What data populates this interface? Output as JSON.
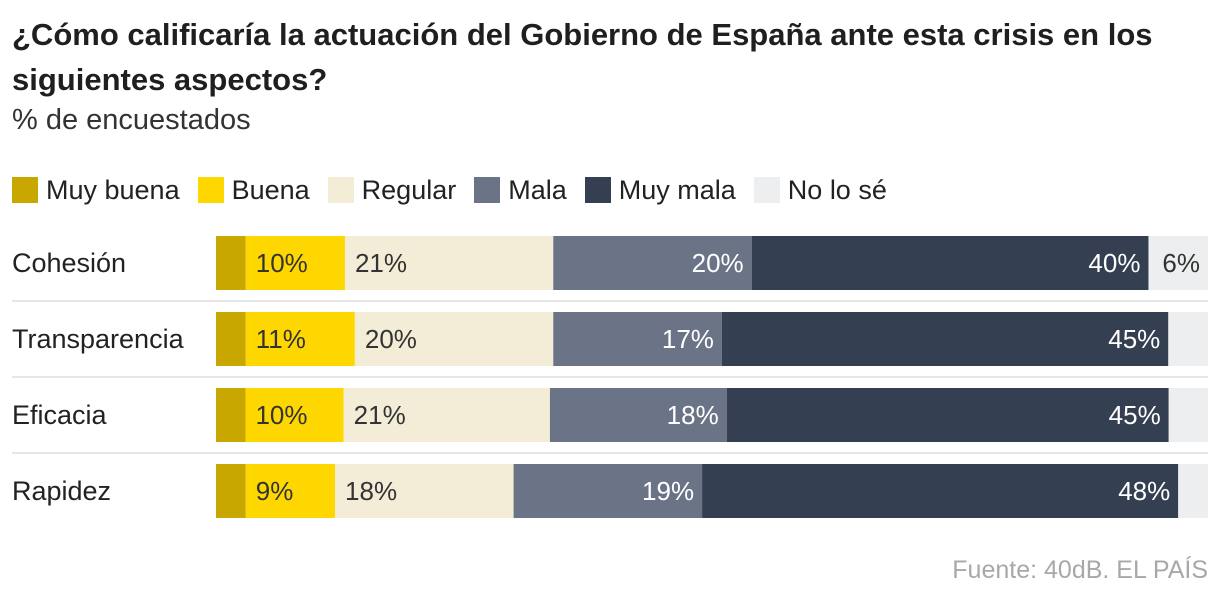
{
  "title": "¿Cómo calificaría la actuación del Gobierno de España ante esta crisis en los siguientes aspectos?",
  "subtitle": "% de encuestados",
  "source": "Fuente: 40dB. EL PAÍS",
  "chart_data": {
    "type": "bar",
    "orientation": "horizontal",
    "stacked": true,
    "legend_placement": "top",
    "categories": [
      "Cohesión",
      "Transparencia",
      "Eficacia",
      "Rapidez"
    ],
    "series": [
      {
        "name": "Muy buena",
        "color": "#c8a800",
        "values": [
          3,
          3,
          3,
          3
        ],
        "labels": [
          "",
          "",
          "",
          ""
        ]
      },
      {
        "name": "Buena",
        "color": "#ffd700",
        "values": [
          10,
          11,
          10,
          9
        ],
        "labels": [
          "10%",
          "11%",
          "10%",
          "9%"
        ]
      },
      {
        "name": "Regular",
        "color": "#f3ecd6",
        "values": [
          21,
          20,
          21,
          18
        ],
        "labels": [
          "21%",
          "20%",
          "21%",
          "18%"
        ]
      },
      {
        "name": "Mala",
        "color": "#6a7486",
        "values": [
          20,
          17,
          18,
          19
        ],
        "labels": [
          "20%",
          "17%",
          "18%",
          "19%"
        ]
      },
      {
        "name": "Muy mala",
        "color": "#353f52",
        "values": [
          40,
          45,
          45,
          48
        ],
        "labels": [
          "40%",
          "45%",
          "45%",
          "48%"
        ]
      },
      {
        "name": "No lo sé",
        "color": "#eceeef",
        "values": [
          6,
          4,
          4,
          3
        ],
        "labels": [
          "6%",
          "",
          "",
          ""
        ]
      }
    ]
  }
}
